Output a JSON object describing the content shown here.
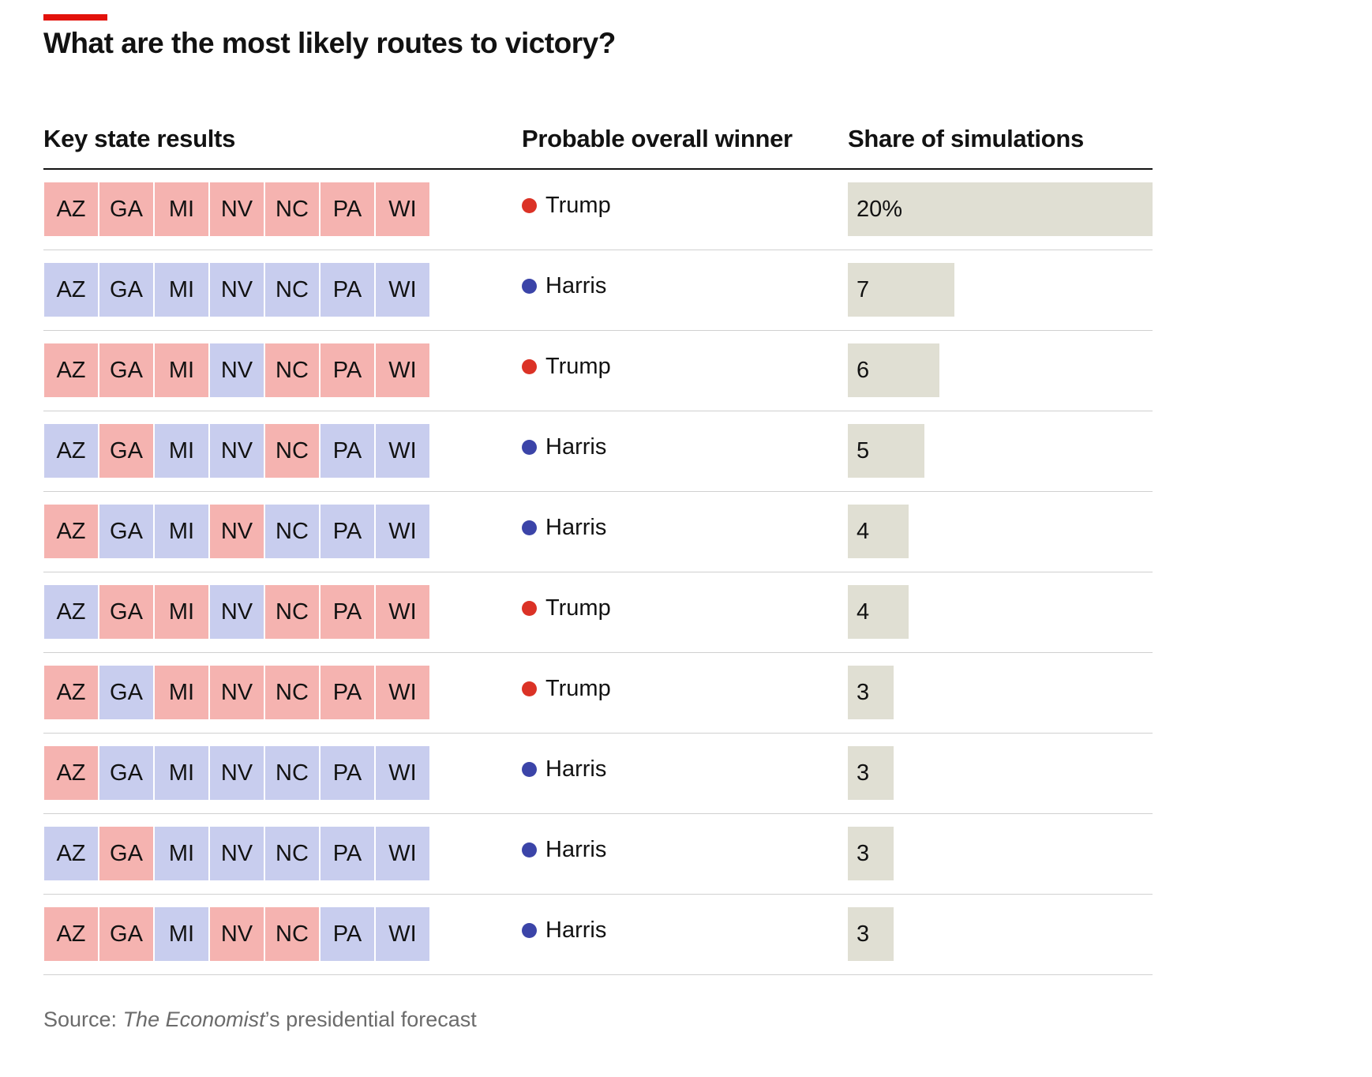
{
  "title": "What are the most likely routes to victory?",
  "headers": {
    "states": "Key state results",
    "winner": "Probable overall winner",
    "share": "Share of simulations"
  },
  "states": [
    "AZ",
    "GA",
    "MI",
    "NV",
    "NC",
    "PA",
    "WI"
  ],
  "colors": {
    "accent": "#e3120b",
    "trump_dot": "#db3226",
    "harris_dot": "#3b44a8",
    "trump_cell": "#f5b3b0",
    "harris_cell": "#c8cdee",
    "bar": "#e0dfd3"
  },
  "source": {
    "prefix": "Source: ",
    "publication": "The Economist",
    "suffix": "’s presidential forecast"
  },
  "chart_data": {
    "type": "table",
    "columns": [
      "Key state results",
      "Probable overall winner",
      "Share of simulations"
    ],
    "unit": "%",
    "rows": [
      {
        "results": [
          "R",
          "R",
          "R",
          "R",
          "R",
          "R",
          "R"
        ],
        "winner": "Trump",
        "value": 20,
        "label": "20%"
      },
      {
        "results": [
          "D",
          "D",
          "D",
          "D",
          "D",
          "D",
          "D"
        ],
        "winner": "Harris",
        "value": 7,
        "label": "7"
      },
      {
        "results": [
          "R",
          "R",
          "R",
          "D",
          "R",
          "R",
          "R"
        ],
        "winner": "Trump",
        "value": 6,
        "label": "6"
      },
      {
        "results": [
          "D",
          "R",
          "D",
          "D",
          "R",
          "D",
          "D"
        ],
        "winner": "Harris",
        "value": 5,
        "label": "5"
      },
      {
        "results": [
          "R",
          "D",
          "D",
          "R",
          "D",
          "D",
          "D"
        ],
        "winner": "Harris",
        "value": 4,
        "label": "4"
      },
      {
        "results": [
          "D",
          "R",
          "R",
          "D",
          "R",
          "R",
          "R"
        ],
        "winner": "Trump",
        "value": 4,
        "label": "4"
      },
      {
        "results": [
          "R",
          "D",
          "R",
          "R",
          "R",
          "R",
          "R"
        ],
        "winner": "Trump",
        "value": 3,
        "label": "3"
      },
      {
        "results": [
          "R",
          "D",
          "D",
          "D",
          "D",
          "D",
          "D"
        ],
        "winner": "Harris",
        "value": 3,
        "label": "3"
      },
      {
        "results": [
          "D",
          "R",
          "D",
          "D",
          "D",
          "D",
          "D"
        ],
        "winner": "Harris",
        "value": 3,
        "label": "3"
      },
      {
        "results": [
          "R",
          "R",
          "D",
          "R",
          "R",
          "D",
          "D"
        ],
        "winner": "Harris",
        "value": 3,
        "label": "3"
      }
    ],
    "bar_max": 20
  }
}
